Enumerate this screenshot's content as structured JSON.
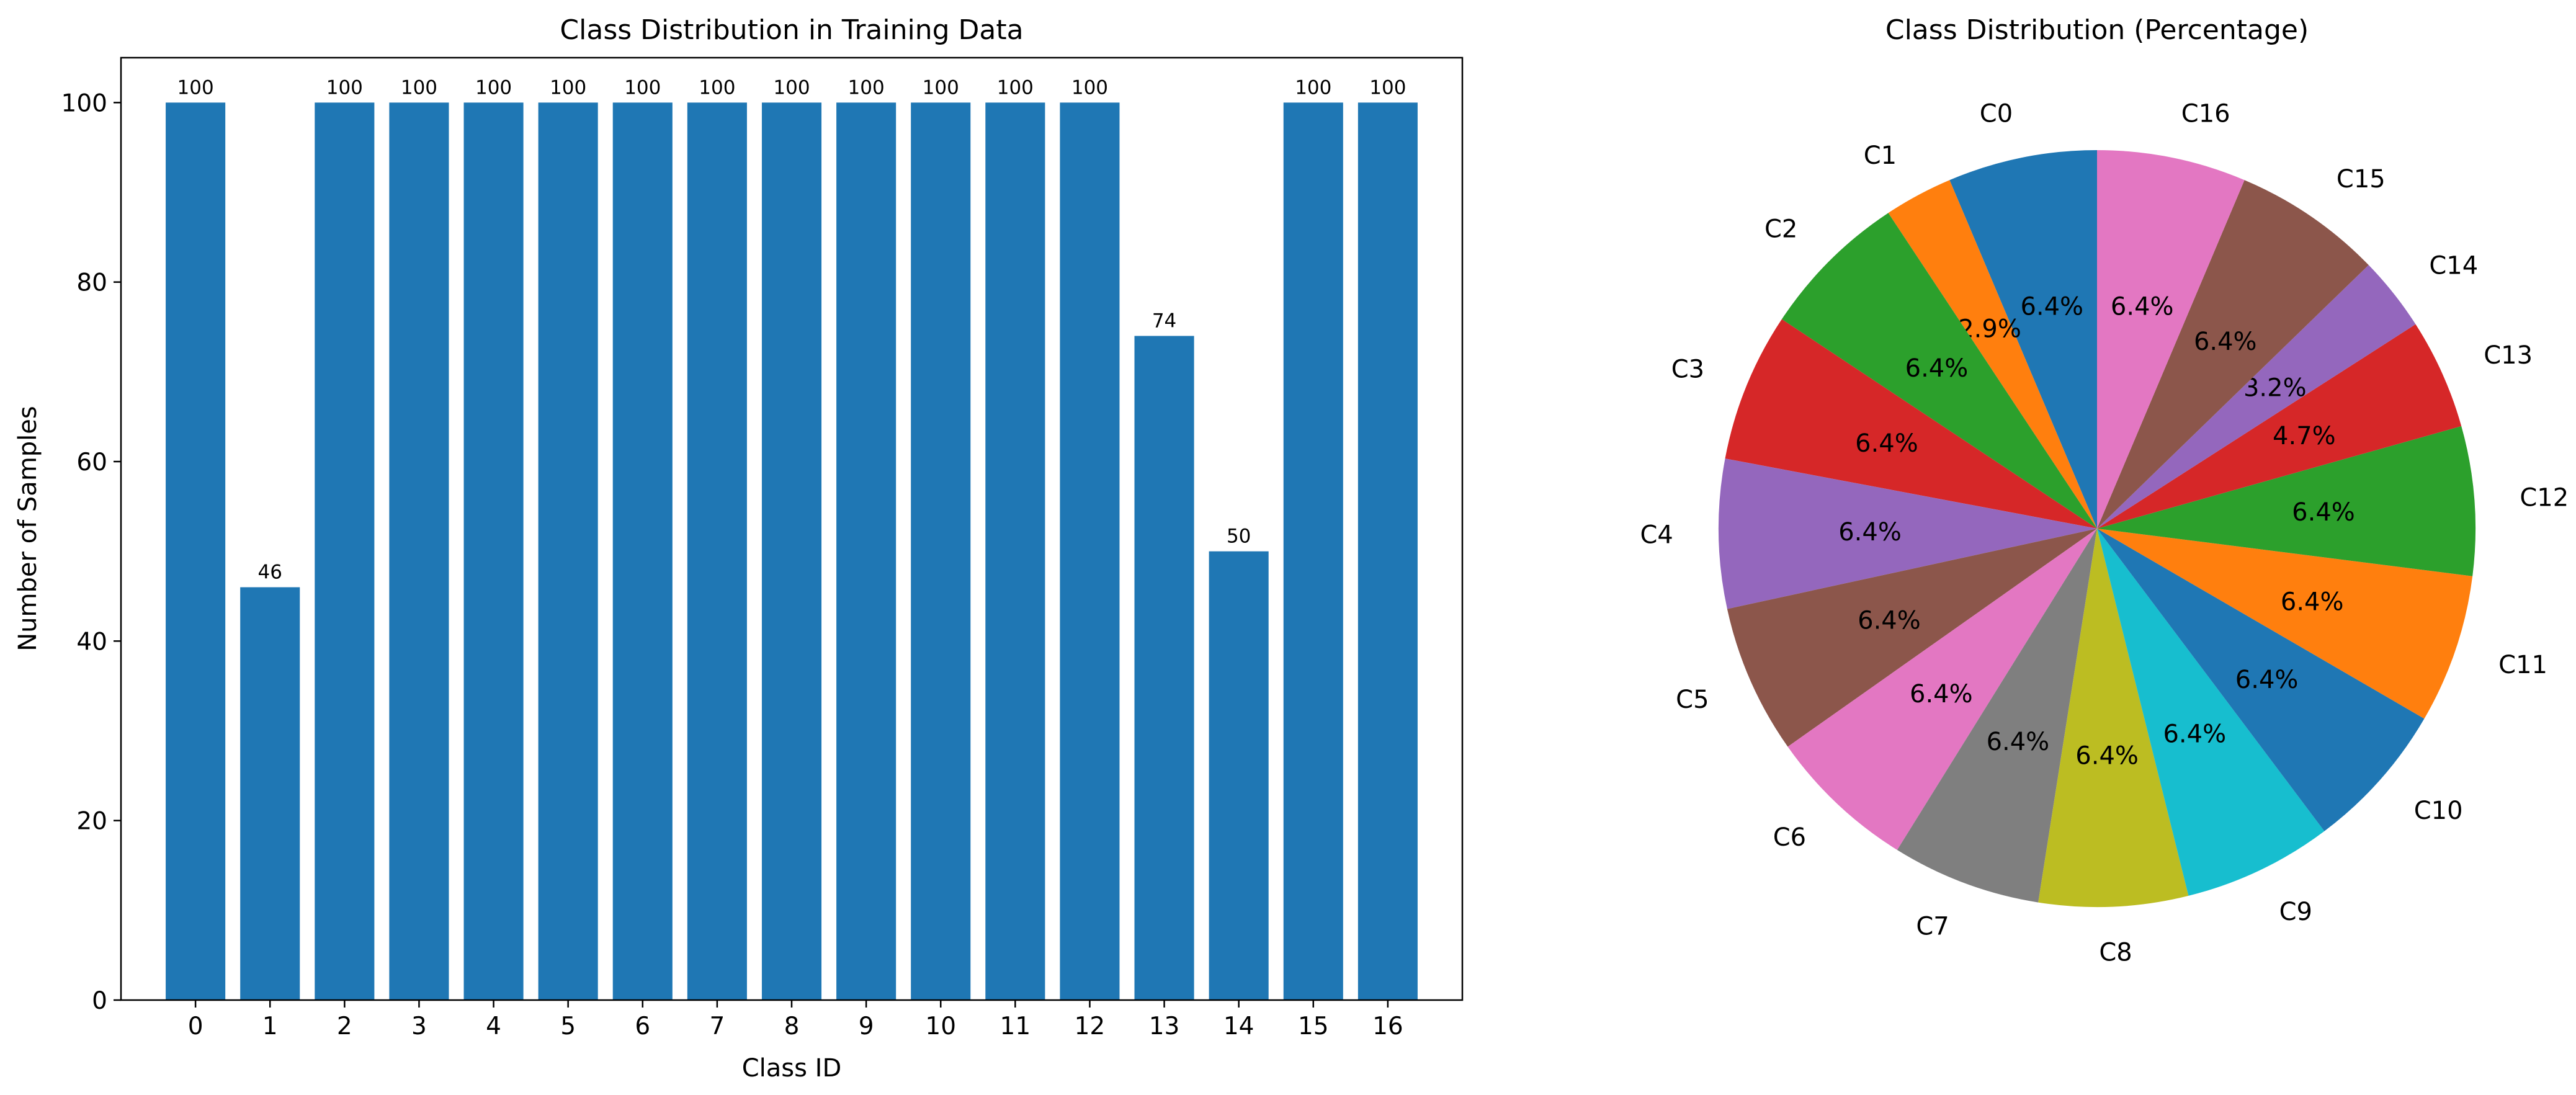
{
  "chart_data": [
    {
      "type": "bar",
      "title": "Class Distribution in Training Data",
      "xlabel": "Class ID",
      "ylabel": "Number of Samples",
      "categories": [
        "0",
        "1",
        "2",
        "3",
        "4",
        "5",
        "6",
        "7",
        "8",
        "9",
        "10",
        "11",
        "12",
        "13",
        "14",
        "15",
        "16"
      ],
      "values": [
        100,
        46,
        100,
        100,
        100,
        100,
        100,
        100,
        100,
        100,
        100,
        100,
        100,
        74,
        50,
        100,
        100
      ],
      "data_labels": [
        "100",
        "46",
        "100",
        "100",
        "100",
        "100",
        "100",
        "100",
        "100",
        "100",
        "100",
        "100",
        "100",
        "74",
        "50",
        "100",
        "100"
      ],
      "yticks": [
        0,
        20,
        40,
        60,
        80,
        100
      ],
      "ylim": [
        0,
        105
      ],
      "color": "#1f77b4",
      "grid": false
    },
    {
      "type": "pie",
      "title": "Class Distribution (Percentage)",
      "labels": [
        "C0",
        "C1",
        "C2",
        "C3",
        "C4",
        "C5",
        "C6",
        "C7",
        "C8",
        "C9",
        "C10",
        "C11",
        "C12",
        "C13",
        "C14",
        "C15",
        "C16"
      ],
      "values": [
        100,
        46,
        100,
        100,
        100,
        100,
        100,
        100,
        100,
        100,
        100,
        100,
        100,
        74,
        50,
        100,
        100
      ],
      "percent_labels": [
        "6.4%",
        "2.9%",
        "6.4%",
        "6.4%",
        "6.4%",
        "6.4%",
        "6.4%",
        "6.4%",
        "6.4%",
        "6.4%",
        "6.4%",
        "6.4%",
        "6.4%",
        "4.7%",
        "3.2%",
        "6.4%",
        "6.4%"
      ],
      "start_angle": 90,
      "direction": "counterclockwise",
      "colors": [
        "#1f77b4",
        "#ff7f0e",
        "#2ca02c",
        "#d62728",
        "#9467bd",
        "#8c564b",
        "#e377c2",
        "#7f7f7f",
        "#bcbd22",
        "#17becf",
        "#1f77b4",
        "#ff7f0e",
        "#2ca02c",
        "#d62728",
        "#9467bd",
        "#8c564b",
        "#e377c2"
      ]
    }
  ]
}
